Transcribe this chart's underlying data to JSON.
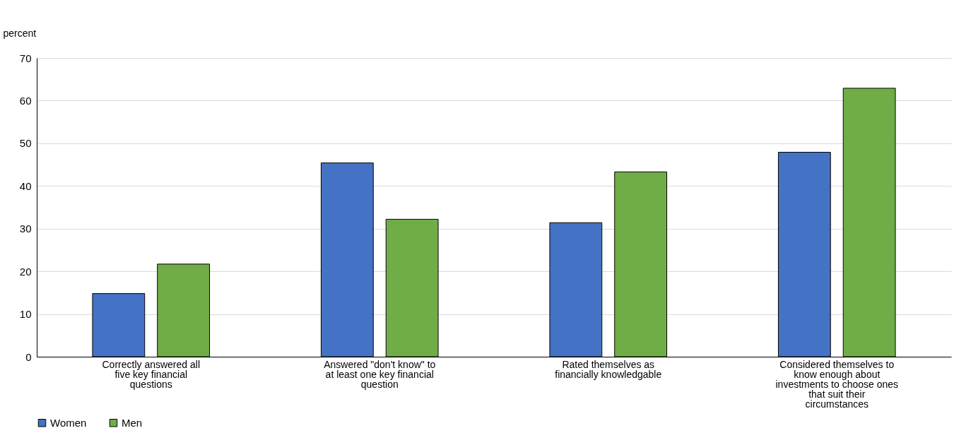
{
  "chart_data": {
    "type": "bar",
    "ylabel": "percent",
    "categories": [
      "Correctly answered all five key financial questions",
      "Answered \"don't know\" to at least one key financial question",
      "Rated themselves as financially knowledgable",
      "Considered themselves to know enough about investments to choose ones that suit their circumstances"
    ],
    "series": [
      {
        "name": "Women",
        "color": "#4472c4",
        "values": [
          14.8,
          45.4,
          31.4,
          47.9
        ]
      },
      {
        "name": "Men",
        "color": "#70ad47",
        "values": [
          21.7,
          32.2,
          43.3,
          62.9
        ]
      }
    ],
    "ylim": [
      0,
      70
    ],
    "yticks": [
      0,
      10,
      20,
      30,
      40,
      50,
      60,
      70
    ],
    "grid": "y",
    "legend": "bottom"
  }
}
